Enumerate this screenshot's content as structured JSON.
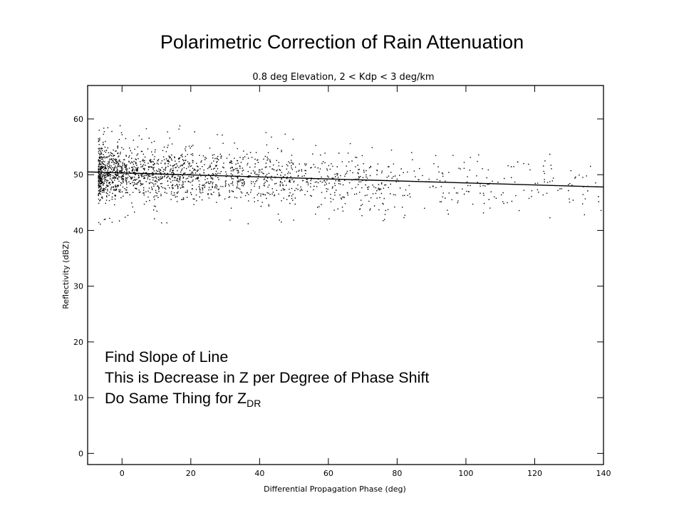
{
  "slide": {
    "title": "Polarimetric Correction of Rain Attenuation"
  },
  "annotation": {
    "line1": "Find Slope of Line",
    "line2": "This is Decrease in Z per Degree of Phase Shift",
    "line3_main": "Do Same Thing for Z",
    "line3_sub": "DR"
  },
  "chart_data": {
    "type": "scatter",
    "title": "0.8 deg Elevation, 2 < Kdp < 3 deg/km",
    "xlabel": "Differential Propagation Phase (deg)",
    "ylabel": "Reflectivity (dBZ)",
    "xlim": [
      -10,
      140
    ],
    "ylim": [
      -2,
      66
    ],
    "xticks": [
      0,
      20,
      40,
      60,
      80,
      100,
      120,
      140
    ],
    "yticks": [
      0,
      10,
      20,
      30,
      40,
      50,
      60
    ],
    "grid": false,
    "point_color": "#000000",
    "scatter_summary": [
      {
        "x": 0,
        "y_center": 50.5,
        "y_min": 41,
        "y_max": 59,
        "density": "very high"
      },
      {
        "x": 20,
        "y_center": 50,
        "y_min": 41,
        "y_max": 59,
        "density": "very high"
      },
      {
        "x": 40,
        "y_center": 49.5,
        "y_min": 41,
        "y_max": 58,
        "density": "high"
      },
      {
        "x": 60,
        "y_center": 49,
        "y_min": 41,
        "y_max": 57,
        "density": "medium"
      },
      {
        "x": 80,
        "y_center": 48.5,
        "y_min": 42,
        "y_max": 56,
        "density": "low"
      },
      {
        "x": 100,
        "y_center": 48.5,
        "y_min": 42,
        "y_max": 55,
        "density": "low"
      },
      {
        "x": 120,
        "y_center": 48,
        "y_min": 42,
        "y_max": 55,
        "density": "low"
      },
      {
        "x": 140,
        "y_center": 47.5,
        "y_min": 42,
        "y_max": 54,
        "density": "low"
      }
    ],
    "fit_line": {
      "x": [
        -10,
        140
      ],
      "y": [
        50.5,
        47.8
      ]
    }
  }
}
